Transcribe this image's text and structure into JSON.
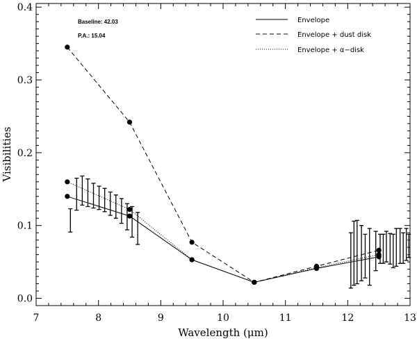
{
  "chart_data": {
    "type": "line",
    "xlabel": "Wavelength (μm)",
    "ylabel": "Visibilities",
    "xlim": [
      7,
      13
    ],
    "ylim": [
      -0.01,
      0.405
    ],
    "x_ticks": [
      "7",
      "8",
      "9",
      "10",
      "11",
      "12",
      "13"
    ],
    "y_ticks": [
      "0.0",
      "0.1",
      "0.2",
      "0.3",
      "0.4"
    ],
    "annotations": [
      "Baseline: 42.03",
      "P.A.: 15.04"
    ],
    "legend_position": "top-right",
    "grid": false,
    "series": [
      {
        "name": "Envelope",
        "style": "solid",
        "x": [
          7.5,
          8.5,
          9.5,
          10.5,
          11.5,
          12.5
        ],
        "y": [
          0.14,
          0.113,
          0.053,
          0.022,
          0.041,
          0.057
        ]
      },
      {
        "name": "Envelope + dust disk",
        "style": "dashed",
        "x": [
          7.5,
          8.5,
          9.5,
          10.5,
          11.5,
          12.5
        ],
        "y": [
          0.345,
          0.242,
          0.077,
          0.022,
          0.044,
          0.066
        ]
      },
      {
        "name": "Envelope + α−disk",
        "style": "dotted",
        "x": [
          7.5,
          8.5,
          9.5,
          10.5,
          11.5,
          12.5
        ],
        "y": [
          0.16,
          0.122,
          0.053,
          0.022,
          0.042,
          0.06
        ]
      }
    ],
    "error_bars": [
      {
        "x": 7.55,
        "y": 0.107,
        "lo": 0.091,
        "hi": 0.123
      },
      {
        "x": 7.65,
        "y": 0.143,
        "lo": 0.121,
        "hi": 0.165
      },
      {
        "x": 7.74,
        "y": 0.148,
        "lo": 0.128,
        "hi": 0.168
      },
      {
        "x": 7.83,
        "y": 0.145,
        "lo": 0.126,
        "hi": 0.164
      },
      {
        "x": 7.92,
        "y": 0.141,
        "lo": 0.124,
        "hi": 0.158
      },
      {
        "x": 8.01,
        "y": 0.138,
        "lo": 0.122,
        "hi": 0.154
      },
      {
        "x": 8.1,
        "y": 0.135,
        "lo": 0.119,
        "hi": 0.151
      },
      {
        "x": 8.19,
        "y": 0.13,
        "lo": 0.114,
        "hi": 0.146
      },
      {
        "x": 8.28,
        "y": 0.126,
        "lo": 0.11,
        "hi": 0.142
      },
      {
        "x": 8.37,
        "y": 0.12,
        "lo": 0.103,
        "hi": 0.137
      },
      {
        "x": 8.46,
        "y": 0.112,
        "lo": 0.094,
        "hi": 0.13
      },
      {
        "x": 8.54,
        "y": 0.105,
        "lo": 0.084,
        "hi": 0.126
      },
      {
        "x": 8.63,
        "y": 0.096,
        "lo": 0.074,
        "hi": 0.118
      },
      {
        "x": 12.05,
        "y": 0.052,
        "lo": 0.014,
        "hi": 0.09
      },
      {
        "x": 12.1,
        "y": 0.062,
        "lo": 0.018,
        "hi": 0.106
      },
      {
        "x": 12.15,
        "y": 0.063,
        "lo": 0.02,
        "hi": 0.107
      },
      {
        "x": 12.22,
        "y": 0.062,
        "lo": 0.024,
        "hi": 0.1
      },
      {
        "x": 12.28,
        "y": 0.058,
        "lo": 0.028,
        "hi": 0.088
      },
      {
        "x": 12.35,
        "y": 0.057,
        "lo": 0.018,
        "hi": 0.096
      },
      {
        "x": 12.45,
        "y": 0.065,
        "lo": 0.038,
        "hi": 0.092
      },
      {
        "x": 12.52,
        "y": 0.068,
        "lo": 0.048,
        "hi": 0.088
      },
      {
        "x": 12.57,
        "y": 0.068,
        "lo": 0.048,
        "hi": 0.088
      },
      {
        "x": 12.62,
        "y": 0.071,
        "lo": 0.05,
        "hi": 0.092
      },
      {
        "x": 12.68,
        "y": 0.068,
        "lo": 0.047,
        "hi": 0.089
      },
      {
        "x": 12.73,
        "y": 0.065,
        "lo": 0.042,
        "hi": 0.088
      },
      {
        "x": 12.78,
        "y": 0.07,
        "lo": 0.044,
        "hi": 0.096
      },
      {
        "x": 12.84,
        "y": 0.072,
        "lo": 0.048,
        "hi": 0.096
      },
      {
        "x": 12.89,
        "y": 0.069,
        "lo": 0.048,
        "hi": 0.09
      },
      {
        "x": 12.94,
        "y": 0.074,
        "lo": 0.052,
        "hi": 0.096
      },
      {
        "x": 12.98,
        "y": 0.072,
        "lo": 0.056,
        "hi": 0.088
      }
    ]
  }
}
